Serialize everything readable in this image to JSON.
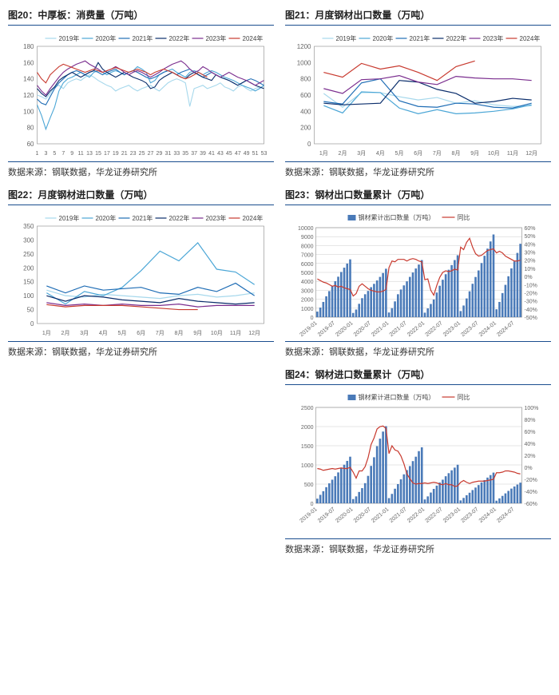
{
  "colors": {
    "y2019": "#a6d8ec",
    "y2020": "#4ba6d6",
    "y2021": "#1f6db5",
    "y2022": "#0a2d6b",
    "y2023": "#7a2d8e",
    "y2024": "#c83a2f",
    "bar": "#4a7ab8",
    "yoy": "#c83a2f",
    "grid": "#cccccc",
    "border": "#888888",
    "title_rule": "#1a4d8e"
  },
  "chart20": {
    "type": "line",
    "title": "图20：中厚板：消费量（万吨）",
    "source": "数据来源：钢联数据，华龙证券研究所",
    "legend": [
      "2019年",
      "2020年",
      "2021年",
      "2022年",
      "2023年",
      "2024年"
    ],
    "x": [
      1,
      3,
      5,
      7,
      9,
      11,
      13,
      15,
      17,
      19,
      21,
      23,
      25,
      27,
      29,
      31,
      33,
      35,
      37,
      39,
      41,
      43,
      45,
      47,
      49,
      51,
      53
    ],
    "ylim": [
      60,
      180
    ],
    "ytick": [
      60,
      80,
      100,
      120,
      140,
      160,
      180
    ],
    "xtick_step": 2,
    "series": {
      "2019": [
        120,
        118,
        115,
        122,
        130,
        132,
        128,
        135,
        138,
        140,
        138,
        142,
        145,
        142,
        138,
        135,
        132,
        130,
        125,
        128,
        130,
        132,
        128,
        125,
        128,
        130,
        132,
        128,
        125,
        130,
        135,
        138,
        140,
        138,
        135,
        106,
        128,
        130,
        132,
        128,
        130,
        132,
        135,
        130,
        128,
        125,
        130,
        132,
        128,
        125,
        128,
        130,
        128
      ],
      "2020": [
        108,
        95,
        78,
        92,
        105,
        125,
        135,
        140,
        142,
        145,
        148,
        145,
        142,
        148,
        150,
        148,
        145,
        148,
        150,
        148,
        145,
        148,
        150,
        155,
        152,
        148,
        135,
        138,
        145,
        148,
        150,
        152,
        148,
        145,
        142,
        148,
        150,
        148,
        145,
        148,
        150,
        148,
        145,
        142,
        140,
        138,
        135,
        132,
        130,
        128,
        125,
        128,
        132
      ],
      "2021": [
        115,
        110,
        108,
        118,
        128,
        135,
        140,
        145,
        148,
        150,
        148,
        145,
        148,
        150,
        148,
        145,
        148,
        150,
        152,
        148,
        145,
        148,
        150,
        148,
        145,
        142,
        140,
        142,
        145,
        148,
        150,
        148,
        145,
        148,
        150,
        152,
        148,
        145,
        142,
        145,
        148,
        145,
        142,
        140,
        138,
        135,
        132,
        135,
        138,
        140,
        138,
        135,
        132
      ],
      "2022": [
        128,
        122,
        118,
        125,
        130,
        138,
        142,
        145,
        148,
        145,
        142,
        145,
        148,
        150,
        160,
        152,
        148,
        145,
        142,
        145,
        148,
        145,
        142,
        140,
        138,
        135,
        128,
        130,
        138,
        142,
        145,
        148,
        145,
        142,
        140,
        145,
        148,
        145,
        142,
        140,
        138,
        145,
        142,
        140,
        138,
        135,
        132,
        135,
        138,
        135,
        132,
        130,
        128
      ],
      "2023": [
        132,
        125,
        120,
        128,
        135,
        142,
        148,
        152,
        155,
        158,
        160,
        162,
        158,
        155,
        152,
        148,
        150,
        152,
        155,
        152,
        148,
        145,
        148,
        150,
        148,
        145,
        142,
        145,
        148,
        152,
        155,
        158,
        160,
        162,
        158,
        152,
        148,
        150,
        155,
        152,
        148,
        145,
        142,
        145,
        148,
        145,
        142,
        140,
        138,
        135,
        132,
        135,
        138
      ],
      "2024": [
        148,
        140,
        135,
        145,
        150,
        155,
        158,
        156,
        154,
        152,
        150,
        148,
        150,
        152,
        150,
        148,
        150,
        152,
        154,
        152,
        150,
        148,
        150,
        152,
        150,
        148,
        145,
        148,
        150,
        152,
        150,
        148,
        145,
        142,
        140,
        142,
        145,
        148,
        145,
        142
      ]
    }
  },
  "chart21": {
    "type": "line",
    "title": "图21：月度钢材出口数量（万吨）",
    "source": "数据来源：钢联数据，华龙证券研究所",
    "legend": [
      "2019年",
      "2020年",
      "2021年",
      "2022年",
      "2023年",
      "2024年"
    ],
    "x_labels": [
      "1月",
      "2月",
      "3月",
      "4月",
      "5月",
      "6月",
      "7月",
      "8月",
      "9月",
      "10月",
      "11月",
      "12月"
    ],
    "ylim": [
      0,
      1200
    ],
    "ytick": [
      0,
      200,
      400,
      600,
      800,
      1000,
      1200
    ],
    "series": {
      "2019": [
        620,
        450,
        630,
        630,
        580,
        540,
        570,
        500,
        530,
        480,
        460,
        470
      ],
      "2020": [
        470,
        380,
        640,
        630,
        440,
        370,
        420,
        370,
        380,
        400,
        430,
        480
      ],
      "2021": [
        520,
        490,
        750,
        800,
        530,
        460,
        450,
        500,
        490,
        450,
        440,
        500
      ],
      "2022": [
        500,
        480,
        490,
        500,
        780,
        760,
        670,
        620,
        500,
        520,
        560,
        540
      ],
      "2023": [
        680,
        620,
        790,
        800,
        840,
        760,
        730,
        830,
        810,
        800,
        800,
        780
      ],
      "2024": [
        880,
        820,
        990,
        920,
        960,
        880,
        780,
        950,
        1020
      ]
    }
  },
  "chart22": {
    "type": "line",
    "title": "图22：月度钢材进口数量（万吨）",
    "source": "数据来源：钢联数据，华龙证券研究所",
    "legend": [
      "2019年",
      "2020年",
      "2021年",
      "2022年",
      "2023年",
      "2024年"
    ],
    "x_labels": [
      "1月",
      "2月",
      "3月",
      "4月",
      "5月",
      "6月",
      "7月",
      "8月",
      "9月",
      "10月",
      "11月",
      "12月"
    ],
    "ylim": [
      0,
      350
    ],
    "ytick": [
      0,
      50,
      100,
      150,
      200,
      250,
      300,
      350
    ],
    "series": {
      "2019": [
        120,
        100,
        95,
        105,
        100,
        95,
        90,
        100,
        105,
        95,
        100,
        110
      ],
      "2020": [
        110,
        70,
        115,
        100,
        130,
        190,
        260,
        225,
        290,
        195,
        185,
        140
      ],
      "2021": [
        135,
        110,
        135,
        120,
        125,
        130,
        110,
        105,
        130,
        115,
        145,
        100
      ],
      "2022": [
        100,
        80,
        100,
        95,
        85,
        80,
        75,
        90,
        80,
        75,
        70,
        75
      ],
      "2023": [
        75,
        65,
        70,
        65,
        70,
        65,
        65,
        70,
        60,
        65,
        65,
        65
      ],
      "2024": [
        68,
        60,
        65,
        65,
        65,
        60,
        55,
        50,
        50
      ]
    }
  },
  "chart23": {
    "type": "bar_line",
    "title": "图23：钢材出口数量累计（万吨）",
    "source": "数据来源：钢联数据，华龙证券研究所",
    "legend_bar": "钢材累计出口数量（万吨）",
    "legend_line": "同比",
    "x_labels": [
      "2019-01",
      "2019-07",
      "2020-01",
      "2020-07",
      "2021-01",
      "2021-07",
      "2022-01",
      "2022-07",
      "2023-01",
      "2023-07",
      "2024-01",
      "2024-07"
    ],
    "ylim_left": [
      0,
      10000
    ],
    "ytick_left": [
      0,
      1000,
      2000,
      3000,
      4000,
      5000,
      6000,
      7000,
      8000,
      9000,
      10000
    ],
    "ylim_right": [
      -50,
      60
    ],
    "ytick_right": [
      -50,
      -40,
      -30,
      -20,
      -10,
      0,
      10,
      20,
      30,
      40,
      50,
      60
    ],
    "bars": [
      620,
      1070,
      1700,
      2330,
      2910,
      3450,
      4020,
      4520,
      5050,
      5530,
      5990,
      6460,
      470,
      850,
      1490,
      2120,
      2560,
      2930,
      3350,
      3720,
      4100,
      4500,
      4930,
      5410,
      520,
      1010,
      1760,
      2560,
      3090,
      3550,
      4000,
      4500,
      4990,
      5440,
      5880,
      6380,
      500,
      980,
      1470,
      1970,
      2750,
      3510,
      4180,
      4800,
      5300,
      5820,
      6380,
      6920,
      680,
      1300,
      2090,
      2890,
      3730,
      4490,
      5220,
      6050,
      6860,
      7660,
      8460,
      9240,
      880,
      1700,
      2690,
      3610,
      4570,
      5450,
      6230,
      7180,
      8200
    ],
    "yoy": [
      -3,
      -5,
      -7,
      -8,
      -10,
      -12,
      -11,
      -13,
      -12,
      -14,
      -15,
      -16,
      -24,
      -21,
      -12,
      -9,
      -12,
      -15,
      -17,
      -18,
      -19,
      -19,
      -18,
      -16,
      11,
      19,
      18,
      21,
      21,
      21,
      19,
      21,
      22,
      21,
      19,
      18,
      -4,
      -3,
      -17,
      -23,
      -11,
      -1,
      5,
      7,
      6,
      7,
      9,
      8,
      36,
      33,
      42,
      47,
      36,
      28,
      25,
      26,
      29,
      32,
      33,
      34,
      29,
      31,
      29,
      25,
      23,
      21,
      19,
      19,
      20
    ]
  },
  "chart24": {
    "type": "bar_line",
    "title": "图24：钢材进口数量累计（万吨）",
    "source": "数据来源：钢联数据，华龙证券研究所",
    "legend_bar": "钢材累计进口数量（万吨）",
    "legend_line": "同比",
    "x_labels": [
      "2019-01",
      "2019-07",
      "2020-01",
      "2020-07",
      "2021-01",
      "2021-07",
      "2022-01",
      "2022-07",
      "2023-01",
      "2023-07",
      "2024-01",
      "2024-07"
    ],
    "ylim_left": [
      0,
      2500
    ],
    "ytick_left": [
      0,
      500,
      1000,
      1500,
      2000,
      2500
    ],
    "ylim_right": [
      -60,
      100
    ],
    "ytick_right": [
      -60,
      -40,
      -20,
      0,
      20,
      40,
      60,
      80,
      100
    ],
    "bars": [
      120,
      220,
      315,
      420,
      520,
      615,
      705,
      805,
      910,
      1005,
      1105,
      1215,
      110,
      180,
      295,
      395,
      525,
      715,
      975,
      1200,
      1490,
      1685,
      1870,
      2010,
      135,
      245,
      380,
      500,
      625,
      755,
      865,
      970,
      1100,
      1215,
      1360,
      1460,
      100,
      180,
      280,
      375,
      460,
      540,
      615,
      705,
      785,
      860,
      930,
      1005,
      75,
      140,
      210,
      275,
      345,
      410,
      475,
      545,
      605,
      670,
      735,
      800,
      68,
      128,
      193,
      258,
      323,
      383,
      438,
      488,
      538
    ],
    "yoy": [
      -2,
      -3,
      -5,
      -4,
      -3,
      -2,
      -3,
      -2,
      -1,
      -2,
      -2,
      0,
      -8,
      -18,
      -6,
      -6,
      1,
      16,
      38,
      49,
      64,
      68,
      69,
      65,
      23,
      36,
      29,
      27,
      19,
      6,
      -11,
      -19,
      -26,
      -28,
      -27,
      -27,
      -26,
      -27,
      -26,
      -25,
      -26,
      -28,
      -29,
      -27,
      -29,
      -29,
      -32,
      -31,
      -25,
      -22,
      -25,
      -27,
      -25,
      -24,
      -23,
      -23,
      -23,
      -22,
      -21,
      -20,
      -9,
      -9,
      -8,
      -6,
      -6,
      -7,
      -8,
      -10,
      -11
    ]
  }
}
